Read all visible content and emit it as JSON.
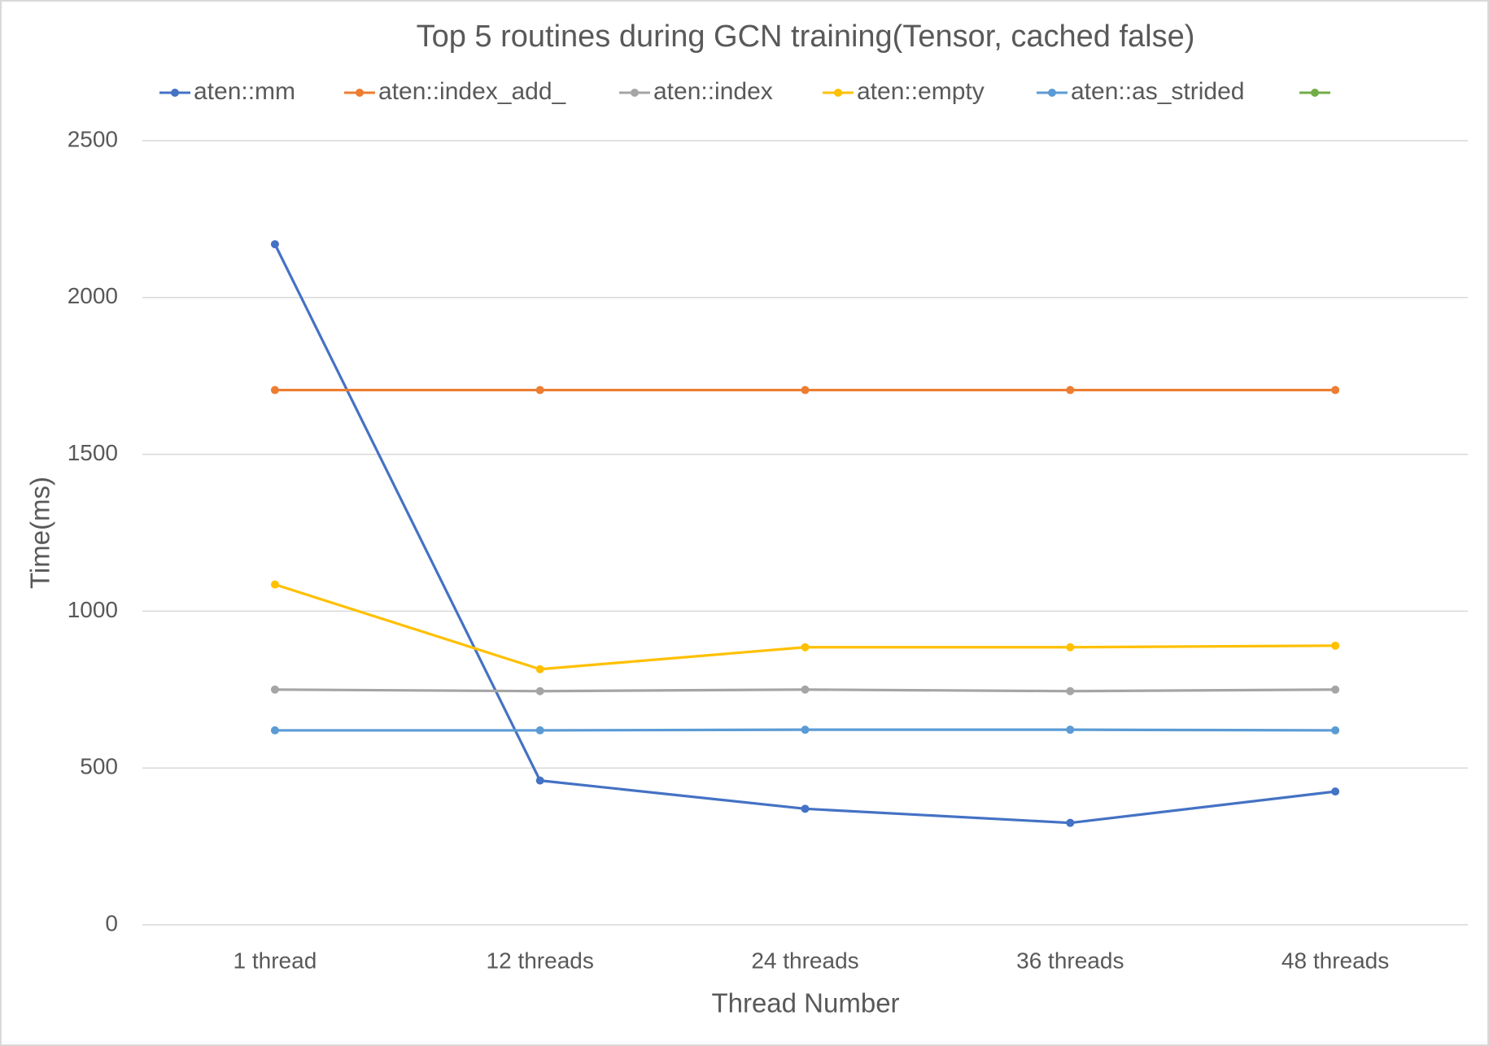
{
  "chart_data": {
    "type": "line",
    "title": "Top 5 routines during GCN training(Tensor, cached false)",
    "x_label": "Thread Number",
    "y_label": "Time(ms)",
    "categories": [
      "1 thread",
      "12 threads",
      "24 threads",
      "36 threads",
      "48 threads"
    ],
    "series": [
      {
        "name": "aten::mm",
        "color": "#4472c4",
        "values": [
          2170,
          460,
          370,
          325,
          425
        ]
      },
      {
        "name": "aten::index_add_",
        "color": "#ed7d31",
        "values": [
          1705,
          1705,
          1705,
          1705,
          1705
        ]
      },
      {
        "name": "aten::index",
        "color": "#a5a5a5",
        "values": [
          750,
          745,
          750,
          745,
          750
        ]
      },
      {
        "name": "aten::empty",
        "color": "#ffc000",
        "values": [
          1085,
          815,
          885,
          885,
          890
        ]
      },
      {
        "name": "aten::as_strided",
        "color": "#5b9bd5",
        "values": [
          620,
          620,
          622,
          622,
          620
        ]
      },
      {
        "name": null,
        "color": "#70ad47",
        "values": [
          null,
          null,
          null,
          null,
          null
        ]
      }
    ],
    "ylim": [
      0,
      2500
    ],
    "yticks": [
      0,
      500,
      1000,
      1500,
      2000,
      2500
    ],
    "grid": true,
    "legend": "top"
  }
}
